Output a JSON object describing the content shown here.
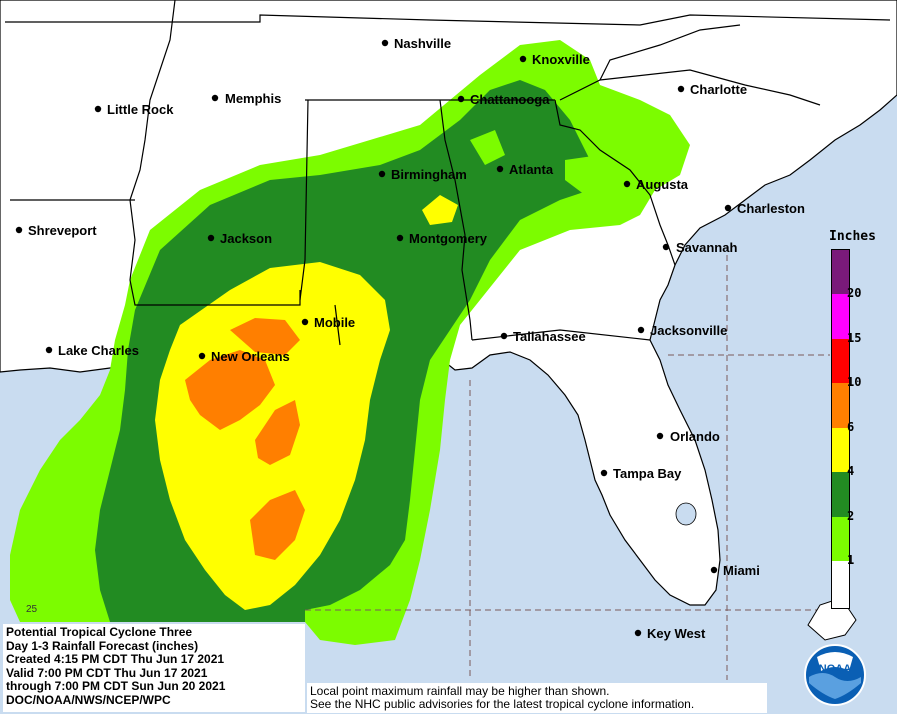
{
  "legend": {
    "title": "Inches",
    "ticks": [
      "20",
      "15",
      "10",
      "6",
      "4",
      "2",
      "1"
    ],
    "colors": [
      "#7a1a7a",
      "#ff00ff",
      "#ff0000",
      "#ff7f00",
      "#ffff00",
      "#228b22",
      "#7cfc00",
      "#ffffff"
    ]
  },
  "info": {
    "line1": "Potential Tropical Cyclone Three",
    "line2": "Day 1-3 Rainfall Forecast (inches)",
    "line3": "Created 4:15 PM CDT Thu Jun 17 2021",
    "line4": "Valid 7:00 PM CDT Thu Jun 17 2021",
    "line5": "through 7:00 PM CDT Sun Jun 20 2021",
    "line6": "DOC/NOAA/NWS/NCEP/WPC"
  },
  "note": {
    "line1": "Local point maximum rainfall may be higher than shown.",
    "line2": "See the NHC public advisories for the latest tropical cyclone information."
  },
  "logo": {
    "text": "NOAA"
  },
  "corner": "25",
  "cities": {
    "nashville": "Nashville",
    "knoxville": "Knoxville",
    "charlotte": "Charlotte",
    "little_rock": "Little Rock",
    "memphis": "Memphis",
    "chattanooga": "Chattanooga",
    "birmingham": "Birmingham",
    "atlanta": "Atlanta",
    "augusta": "Augusta",
    "shreveport": "Shreveport",
    "jackson": "Jackson",
    "montgomery": "Montgomery",
    "charleston": "Charleston",
    "savannah": "Savannah",
    "lake_charles": "Lake Charles",
    "new_orleans": "New Orleans",
    "mobile": "Mobile",
    "tallahassee": "Tallahassee",
    "jacksonville": "Jacksonville",
    "orlando": "Orlando",
    "tampa_bay": "Tampa Bay",
    "miami": "Miami",
    "key_west": "Key West"
  },
  "colors": {
    "ocean": "#c9dcf0",
    "land": "#ffffff",
    "light_green": "#7cfc00",
    "dark_green": "#228b22",
    "yellow": "#ffff00",
    "orange": "#ff7f00"
  }
}
